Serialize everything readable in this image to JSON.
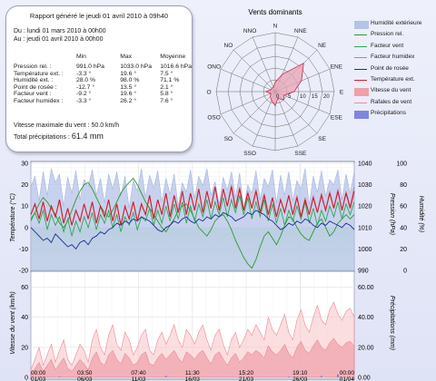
{
  "report": {
    "title": "Rapport généré le jeudi 01 avril 2010 à 09h40",
    "from": "Du : lundi 01 mars 2010 à 00h00",
    "to": "Au : jeudi 01 avril 2010 à 00h00",
    "headers": [
      "Min",
      "Max",
      "Moyenne"
    ],
    "rows": [
      {
        "label": "Pression rel. :",
        "min": "991.0 hPa",
        "max": "1033.0 hPa",
        "avg": "1016.6 hPa"
      },
      {
        "label": "Température ext. :",
        "min": "-3.3 °",
        "max": "19.6 °",
        "avg": "7.5 °"
      },
      {
        "label": "Humidité ext. :",
        "min": "28.0 %",
        "max": "98.0 %",
        "avg": "71.1 %"
      },
      {
        "label": "Point de rosée :",
        "min": "-12.7 °",
        "max": "13.5 °",
        "avg": "2.1 °"
      },
      {
        "label": "Facteur vent :",
        "min": "-9.2 °",
        "max": "19.6 °",
        "avg": "5.8 °"
      },
      {
        "label": "Facteur humidex :",
        "min": "-3.3 °",
        "max": "26.2 °",
        "avg": "7.6 °"
      }
    ],
    "max_wind": "Vitesse maximale du vent : 50.0 km/h",
    "total_precip_label": "Total précipitations :",
    "total_precip_value": "61.4 mm"
  },
  "windrose_chart": {
    "type": "radar",
    "title": "Vents dominants",
    "directions": [
      "N",
      "NNE",
      "NE",
      "ENE",
      "E",
      "ESE",
      "SE",
      "SSE",
      "S",
      "SSO",
      "SO",
      "OSO",
      "O",
      "ONO",
      "NO",
      "NNO"
    ],
    "rings": [
      "0",
      "5",
      "10",
      "15",
      "20"
    ],
    "rmax": 25,
    "values": [
      4,
      8,
      17,
      12,
      8,
      4,
      5,
      3,
      6,
      4,
      3,
      2,
      4,
      2,
      2,
      2
    ],
    "color_fill": "#e8a3b4",
    "color_line": "#c8284a"
  },
  "legend": [
    {
      "label": "Humidité extérieure",
      "kind": "area",
      "color": "#b5c3e8"
    },
    {
      "label": "Pression rel.",
      "kind": "line",
      "color": "#2a9a2a"
    },
    {
      "label": "Facteur vent",
      "kind": "line",
      "color": "#2aa850"
    },
    {
      "label": "Facteur humidex",
      "kind": "line",
      "color": "#e07090"
    },
    {
      "label": "Point de rosée",
      "kind": "line",
      "color": "#1a2a9a"
    },
    {
      "label": "Température ext.",
      "kind": "line",
      "color": "#cc1f2a"
    },
    {
      "label": "Vitesse du vent",
      "kind": "area",
      "color": "#f0a0a8"
    },
    {
      "label": "Rafales de vent",
      "kind": "line",
      "color": "#f08898"
    },
    {
      "label": "Précipitations",
      "kind": "area",
      "color": "#7f86e0"
    }
  ],
  "chart_data": [
    {
      "type": "line",
      "ylabel": "Température (°C)",
      "ylabel_right1": "Pression (hPa)",
      "ylabel_right2": "Humidité (%)",
      "ylim": [
        -20,
        30
      ],
      "yticks": [
        "30",
        "20",
        "10",
        "0",
        "-10",
        "-20"
      ],
      "pressure_ylim": [
        990,
        1040
      ],
      "pressure_ticks": [
        "1040",
        "1030",
        "1020",
        "1010",
        "1000",
        "990"
      ],
      "humidity_ylim": [
        0,
        100
      ],
      "humidity_ticks": [
        "100",
        "80",
        "60",
        "40",
        "20",
        "0"
      ],
      "x_range_days": [
        0,
        31
      ],
      "xticks": [
        {
          "t": "00:00",
          "d": "01/03"
        },
        {
          "t": "03:50",
          "d": "06/03"
        },
        {
          "t": "07:40",
          "d": "11/03"
        },
        {
          "t": "11:30",
          "d": "16/03"
        },
        {
          "t": "15:20",
          "d": "21/03"
        },
        {
          "t": "19:10",
          "d": "26/03"
        },
        {
          "t": "00:00",
          "d": "01/04"
        }
      ],
      "xtick_days": [
        0,
        5.16,
        10.32,
        15.48,
        20.64,
        25.8,
        31
      ],
      "grid": true,
      "series": [
        {
          "name": "Humidité extérieure",
          "color": "#b5c3e8",
          "axis": "humidity",
          "y": [
            78,
            88,
            65,
            92,
            70,
            95,
            82,
            90,
            60,
            87,
            72,
            93,
            66,
            85,
            78,
            94,
            70,
            86,
            63,
            90,
            76,
            92,
            69,
            88,
            58,
            84,
            74,
            95,
            68,
            89,
            77,
            93,
            64,
            86,
            71,
            90,
            60,
            82,
            73,
            94,
            67,
            88,
            79,
            95,
            70,
            83,
            62,
            87,
            75,
            92,
            68,
            91,
            57,
            80,
            72,
            93,
            66,
            86,
            78,
            94,
            63,
            89,
            70,
            92,
            65,
            84,
            76,
            95,
            61,
            88,
            73,
            93,
            69,
            85,
            80,
            94,
            66,
            90,
            72,
            92
          ]
        },
        {
          "name": "Pression rel.",
          "color": "#2a9a2a",
          "axis": "pressure",
          "y": [
            1014,
            1017,
            1021,
            1024,
            1022,
            1019,
            1016,
            1012,
            1010,
            1013,
            1018,
            1023,
            1027,
            1030,
            1031,
            1028,
            1024,
            1020,
            1017,
            1015,
            1018,
            1022,
            1026,
            1029,
            1031,
            1033,
            1030,
            1026,
            1022,
            1019,
            1016,
            1013,
            1010,
            1008,
            1011,
            1014,
            1018,
            1020,
            1021,
            1018,
            1014,
            1010,
            1008,
            1006,
            1009,
            1013,
            1015,
            1016,
            1013,
            1009,
            1004,
            1000,
            996,
            993,
            991,
            995,
            1001,
            1006,
            1008,
            1005,
            1002,
            1006,
            1011,
            1015,
            1014,
            1010,
            1007,
            1005,
            1004,
            1008,
            1012,
            1014,
            1010,
            1006,
            1008,
            1012,
            1014,
            1016,
            1014,
            1016
          ]
        },
        {
          "name": "Facteur vent",
          "color": "#2aa850",
          "axis": "temp",
          "y": [
            3,
            7,
            2,
            8,
            -1,
            6,
            1,
            5,
            -2,
            4,
            -4,
            3,
            -2,
            5,
            0,
            7,
            -1,
            6,
            2,
            8,
            0,
            6,
            -2,
            5,
            1,
            7,
            -1,
            5,
            3,
            9,
            1,
            8,
            2,
            10,
            3,
            11,
            4,
            12,
            2,
            10,
            3,
            11,
            5,
            13,
            4,
            12,
            6,
            14,
            5,
            13,
            7,
            15,
            6,
            14,
            4,
            12,
            5,
            13,
            3,
            11,
            2,
            9,
            1,
            8,
            3,
            10,
            4,
            12,
            2,
            9,
            1,
            8,
            3,
            10,
            5,
            12,
            4,
            11,
            6,
            12
          ]
        },
        {
          "name": "Facteur humidex",
          "color": "#e07090",
          "axis": "temp",
          "y": [
            6,
            11,
            4,
            12,
            3,
            10,
            5,
            13,
            2,
            9,
            1,
            8,
            3,
            11,
            4,
            12,
            2,
            10,
            5,
            13,
            3,
            11,
            1,
            10,
            4,
            12,
            3,
            11,
            6,
            15,
            4,
            13,
            6,
            16,
            5,
            15,
            7,
            17,
            6,
            16,
            8,
            18,
            7,
            17,
            9,
            19,
            8,
            18,
            10,
            20,
            9,
            19,
            8,
            17,
            9,
            18,
            7,
            16,
            6,
            14,
            5,
            13,
            7,
            15,
            6,
            15,
            5,
            14,
            6,
            15,
            7,
            16,
            8,
            17,
            9,
            18,
            8,
            17,
            10,
            19
          ]
        },
        {
          "name": "Point de rosée",
          "color": "#1a2a9a",
          "axis": "temp",
          "y": [
            0,
            -2,
            -4,
            -6,
            -5,
            -7,
            -3,
            -5,
            -7,
            -9,
            -8,
            -10,
            -7,
            -6,
            -8,
            -5,
            -4,
            -2,
            -3,
            -1,
            0,
            2,
            1,
            3,
            2,
            4,
            3,
            5,
            4,
            3,
            1,
            -1,
            -2,
            0,
            1,
            3,
            2,
            4,
            5,
            3,
            2,
            4,
            3,
            5,
            4,
            6,
            5,
            7,
            6,
            5,
            3,
            4,
            5,
            7,
            6,
            8,
            7,
            6,
            4,
            3,
            1,
            -1,
            0,
            2,
            1,
            3,
            2,
            4,
            3,
            1,
            0,
            2,
            1,
            3,
            2,
            1,
            0,
            2,
            1,
            -1
          ]
        },
        {
          "name": "Température ext.",
          "color": "#cc1f2a",
          "axis": "temp",
          "y": [
            6,
            11,
            4,
            12,
            3,
            10,
            5,
            13,
            2,
            9,
            1,
            8,
            3,
            11,
            4,
            12,
            2,
            10,
            5,
            13,
            3,
            11,
            1,
            10,
            4,
            12,
            3,
            11,
            6,
            15,
            4,
            13,
            6,
            16,
            5,
            15,
            7,
            17,
            6,
            16,
            8,
            18,
            7,
            17,
            9,
            19,
            8,
            18,
            10,
            19,
            9,
            18,
            8,
            16,
            9,
            17,
            7,
            15,
            6,
            14,
            5,
            13,
            7,
            15,
            6,
            14,
            5,
            13,
            6,
            14,
            7,
            15,
            8,
            16,
            9,
            17,
            8,
            16,
            9,
            17
          ]
        }
      ]
    },
    {
      "type": "area",
      "ylabel": "Vitesse du vent (km/h)",
      "ylabel_right": "Précipitations (mm)",
      "ylim": [
        0,
        70
      ],
      "yticks": [
        "60",
        "40",
        "20",
        "0"
      ],
      "precip_ylim": [
        0,
        70
      ],
      "precip_ticks": [
        "60.00",
        "40.00",
        "20.00",
        "0.00"
      ],
      "grid": true,
      "series": [
        {
          "name": "Rafales de vent",
          "color": "#f08898",
          "y": [
            5,
            12,
            20,
            8,
            15,
            22,
            10,
            18,
            25,
            12,
            8,
            15,
            22,
            18,
            10,
            25,
            32,
            20,
            15,
            28,
            35,
            22,
            18,
            30,
            25,
            15,
            20,
            28,
            32,
            18,
            15,
            25,
            30,
            22,
            28,
            35,
            25,
            20,
            32,
            28,
            22,
            30,
            35,
            25,
            18,
            28,
            32,
            22,
            15,
            25,
            30,
            20,
            25,
            32,
            28,
            35,
            30,
            25,
            40,
            32,
            28,
            35,
            42,
            30,
            25,
            38,
            45,
            35,
            30,
            40,
            48,
            38,
            35,
            45,
            50,
            42,
            38,
            44,
            46,
            40
          ]
        },
        {
          "name": "Vitesse du vent",
          "color": "#f0a0a8",
          "y": [
            2,
            6,
            10,
            4,
            8,
            12,
            5,
            9,
            13,
            6,
            4,
            8,
            12,
            9,
            5,
            13,
            17,
            10,
            8,
            15,
            18,
            12,
            9,
            16,
            13,
            8,
            10,
            15,
            17,
            9,
            8,
            13,
            16,
            12,
            15,
            18,
            13,
            10,
            17,
            15,
            12,
            16,
            18,
            13,
            9,
            15,
            17,
            12,
            8,
            13,
            16,
            10,
            13,
            17,
            15,
            18,
            16,
            13,
            21,
            17,
            15,
            18,
            22,
            16,
            13,
            20,
            24,
            18,
            16,
            21,
            25,
            20,
            18,
            23,
            26,
            22,
            20,
            23,
            24,
            21
          ]
        },
        {
          "name": "Précipitations",
          "color": "#7f86e0",
          "y": [
            0,
            0,
            0,
            0,
            0,
            0,
            0,
            0.5,
            0,
            0,
            0,
            0,
            0,
            0,
            0,
            0,
            0,
            0,
            0,
            0,
            0,
            0,
            0,
            0,
            0,
            0,
            0,
            0,
            0,
            0,
            0,
            0,
            0,
            1,
            0,
            0,
            0,
            0,
            0,
            0,
            0,
            0,
            0,
            0,
            0,
            0,
            0,
            0,
            0,
            0,
            0,
            0,
            0,
            0,
            0,
            0,
            0,
            0,
            0,
            0,
            0,
            0,
            0,
            0.5,
            0,
            0,
            0,
            0,
            0,
            0,
            0,
            1,
            0,
            0,
            0,
            2,
            0,
            0,
            0,
            0
          ]
        }
      ]
    }
  ]
}
